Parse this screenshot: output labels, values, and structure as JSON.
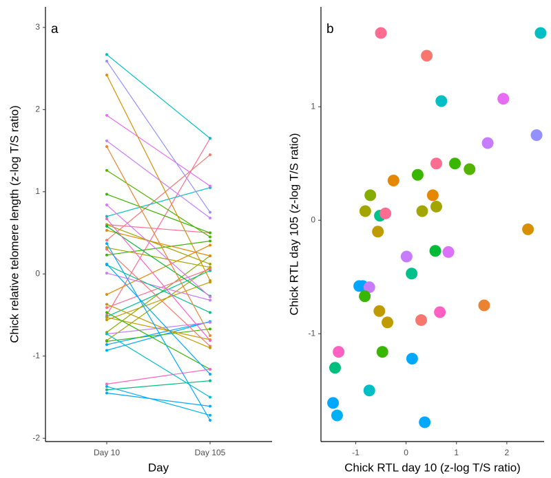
{
  "chart_data": [
    {
      "type": "line",
      "title": "a",
      "x_label": "Day",
      "y_label": "Chick relative telomere length (z-log T/S ratio)",
      "categories": [
        "Day 10",
        "Day 105"
      ],
      "ylim": [
        -2.04,
        3.25
      ],
      "yticks": [
        -2,
        -1,
        0,
        1,
        2,
        3
      ],
      "series": [
        {
          "color": "#FF6C91",
          "values": [
            -0.5,
            1.65
          ]
        },
        {
          "color": "#F8766D",
          "values": [
            0.41,
            1.45
          ]
        },
        {
          "color": "#00BFC4",
          "values": [
            2.67,
            1.65
          ]
        },
        {
          "color": "#00BFC4",
          "values": [
            0.7,
            1.05
          ]
        },
        {
          "color": "#E76BF3",
          "values": [
            1.93,
            1.07
          ]
        },
        {
          "color": "#9590FF",
          "values": [
            2.59,
            0.75
          ]
        },
        {
          "color": "#C77CFF",
          "values": [
            1.62,
            0.68
          ]
        },
        {
          "color": "#FF6C91",
          "values": [
            0.6,
            0.5
          ]
        },
        {
          "color": "#39B600",
          "values": [
            0.97,
            0.5
          ]
        },
        {
          "color": "#53B400",
          "values": [
            1.26,
            0.45
          ]
        },
        {
          "color": "#39B600",
          "values": [
            0.23,
            0.4
          ]
        },
        {
          "color": "#E58700",
          "values": [
            -0.25,
            0.35
          ]
        },
        {
          "color": "#85AD00",
          "values": [
            -0.71,
            0.22
          ]
        },
        {
          "color": "#E58700",
          "values": [
            0.53,
            0.22
          ]
        },
        {
          "color": "#A3A500",
          "values": [
            0.6,
            0.12
          ]
        },
        {
          "color": "#A3A500",
          "values": [
            -0.81,
            0.08
          ]
        },
        {
          "color": "#A3A500",
          "values": [
            0.32,
            0.08
          ]
        },
        {
          "color": "#00C08B",
          "values": [
            -0.52,
            0.04
          ]
        },
        {
          "color": "#FF6C91",
          "values": [
            -0.41,
            0.06
          ]
        },
        {
          "color": "#C09B00",
          "values": [
            -0.56,
            -0.1
          ]
        },
        {
          "color": "#D89000",
          "values": [
            2.42,
            -0.08
          ]
        },
        {
          "color": "#00BA38",
          "values": [
            0.58,
            -0.27
          ]
        },
        {
          "color": "#C77CFF",
          "values": [
            0.01,
            -0.32
          ]
        },
        {
          "color": "#DC71FA",
          "values": [
            0.84,
            -0.28
          ]
        },
        {
          "color": "#00C08B",
          "values": [
            0.11,
            -0.47
          ]
        },
        {
          "color": "#00A9FF",
          "values": [
            -0.93,
            -0.58
          ]
        },
        {
          "color": "#00A5FF",
          "values": [
            -0.86,
            -0.58
          ]
        },
        {
          "color": "#C77CFF",
          "values": [
            -0.73,
            -0.59
          ]
        },
        {
          "color": "#39B600",
          "values": [
            -0.82,
            -0.67
          ]
        },
        {
          "color": "#EA8331",
          "values": [
            1.55,
            -0.75
          ]
        },
        {
          "color": "#C09B00",
          "values": [
            -0.53,
            -0.8
          ]
        },
        {
          "color": "#FF61C3",
          "values": [
            0.67,
            -0.81
          ]
        },
        {
          "color": "#F8766D",
          "values": [
            0.3,
            -0.88
          ]
        },
        {
          "color": "#C09B00",
          "values": [
            -0.37,
            -0.9
          ]
        },
        {
          "color": "#39B600",
          "values": [
            -0.47,
            -1.16
          ]
        },
        {
          "color": "#00A9FF",
          "values": [
            0.12,
            -1.22
          ]
        },
        {
          "color": "#FF61C3",
          "values": [
            -1.34,
            -1.16
          ]
        },
        {
          "color": "#00BF7D",
          "values": [
            -1.41,
            -1.3
          ]
        },
        {
          "color": "#00BFC4",
          "values": [
            -0.73,
            -1.5
          ]
        },
        {
          "color": "#00A9FF",
          "values": [
            -1.45,
            -1.61
          ]
        },
        {
          "color": "#00B0F6",
          "values": [
            -1.37,
            -1.72
          ]
        },
        {
          "color": "#00A9FF",
          "values": [
            0.37,
            -1.78
          ]
        }
      ]
    },
    {
      "type": "scatter",
      "title": "b",
      "x_label": "Chick RTL day 10 (z-log T/S ratio)",
      "y_label": "Chick RTL day 105 (z-log T/S ratio)",
      "xlim": [
        -1.69,
        2.74
      ],
      "xticks": [
        -1,
        0,
        1,
        2
      ],
      "ylim": [
        -1.95,
        1.88
      ],
      "yticks": [
        -1,
        0,
        1
      ],
      "x": [
        -0.5,
        0.41,
        2.67,
        0.7,
        1.93,
        2.59,
        1.62,
        0.6,
        0.97,
        1.26,
        0.23,
        -0.25,
        -0.71,
        0.53,
        0.6,
        -0.81,
        0.32,
        -0.52,
        -0.41,
        -0.56,
        2.42,
        0.58,
        0.01,
        0.84,
        0.11,
        -0.93,
        -0.86,
        -0.73,
        -0.82,
        1.55,
        -0.53,
        0.67,
        0.3,
        -0.37,
        -0.47,
        0.12,
        -1.34,
        -1.41,
        -0.73,
        -1.45,
        -1.37,
        0.37
      ],
      "values": [
        1.65,
        1.45,
        1.65,
        1.05,
        1.07,
        0.75,
        0.68,
        0.5,
        0.5,
        0.45,
        0.4,
        0.35,
        0.22,
        0.22,
        0.12,
        0.08,
        0.08,
        0.04,
        0.06,
        -0.1,
        -0.08,
        -0.27,
        -0.32,
        -0.28,
        -0.47,
        -0.58,
        -0.58,
        -0.59,
        -0.67,
        -0.75,
        -0.8,
        -0.81,
        -0.88,
        -0.9,
        -1.16,
        -1.22,
        -1.16,
        -1.3,
        -1.5,
        -1.61,
        -1.72,
        -1.78
      ],
      "colors": [
        "#FF6C91",
        "#F8766D",
        "#00BFC4",
        "#00BFC4",
        "#E76BF3",
        "#9590FF",
        "#C77CFF",
        "#FF6C91",
        "#39B600",
        "#53B400",
        "#39B600",
        "#E58700",
        "#85AD00",
        "#E58700",
        "#A3A500",
        "#A3A500",
        "#A3A500",
        "#00C08B",
        "#FF6C91",
        "#C09B00",
        "#D89000",
        "#00BA38",
        "#C77CFF",
        "#DC71FA",
        "#00C08B",
        "#00A9FF",
        "#00A5FF",
        "#C77CFF",
        "#39B600",
        "#EA8331",
        "#C09B00",
        "#FF61C3",
        "#F8766D",
        "#C09B00",
        "#39B600",
        "#00A9FF",
        "#FF61C3",
        "#00BF7D",
        "#00BFC4",
        "#00A9FF",
        "#00B0F6",
        "#00A9FF"
      ]
    }
  ]
}
